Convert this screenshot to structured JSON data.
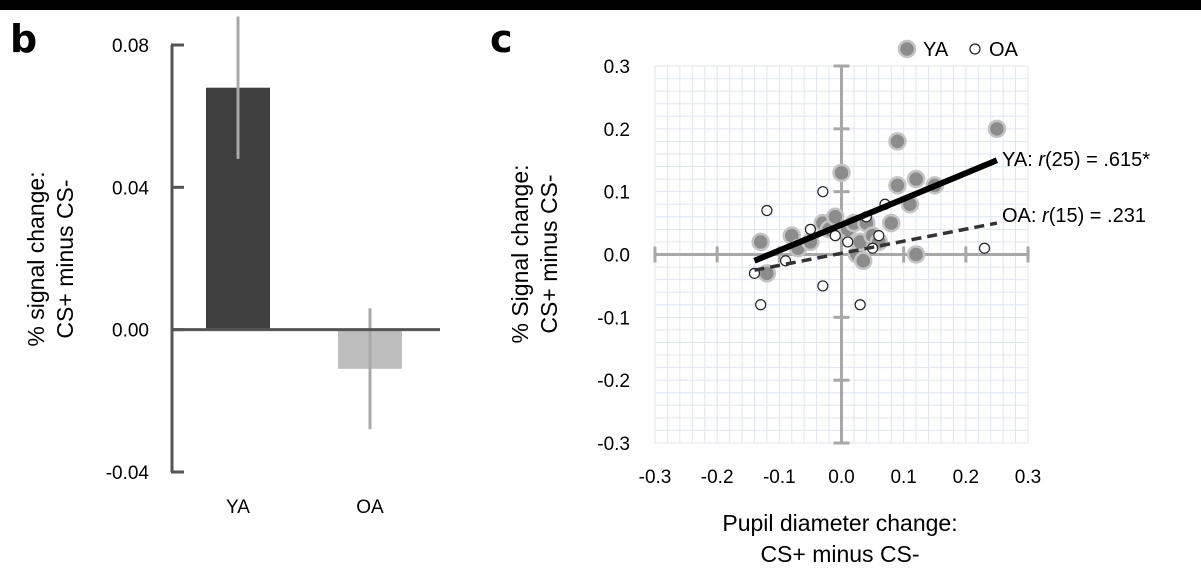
{
  "chart_data": [
    {
      "panel": "b",
      "type": "bar",
      "categories": [
        "YA",
        "OA"
      ],
      "values": [
        0.068,
        -0.011
      ],
      "errors": [
        0.02,
        0.017
      ],
      "colors": [
        "#3f3f3f",
        "#bdbdbd"
      ],
      "error_color": "#a9a9a9",
      "ylabel_lines": [
        "% signal change:",
        "CS+ minus CS-"
      ],
      "ylim": [
        -0.04,
        0.08
      ],
      "yticks": [
        0.08,
        0.04,
        0.0,
        -0.04
      ],
      "ytick_labels": [
        "0.08",
        "0.04",
        "0.00",
        "-0.04"
      ]
    },
    {
      "panel": "c",
      "type": "scatter",
      "xlabel_lines": [
        "Pupil diameter change:",
        "CS+ minus CS-"
      ],
      "ylabel_lines": [
        "% Signal change:",
        "CS+ minus CS-"
      ],
      "xlim": [
        -0.3,
        0.3
      ],
      "ylim": [
        -0.3,
        0.3
      ],
      "xticks": [
        -0.3,
        -0.2,
        -0.1,
        0.0,
        0.1,
        0.2,
        0.3
      ],
      "xtick_labels": [
        "-0.3",
        "-0.2",
        "-0.1",
        "0.0",
        "0.1",
        "0.2",
        "0.3"
      ],
      "yticks": [
        0.3,
        0.2,
        0.1,
        0.0,
        -0.1,
        -0.2,
        -0.3
      ],
      "ytick_labels": [
        "0.3",
        "0.2",
        "0.1",
        "0.0",
        "-0.1",
        "-0.2",
        "-0.3"
      ],
      "grid": true,
      "legend_position": "top-right",
      "series": [
        {
          "name": "YA",
          "marker": "filled",
          "color": "#8c8c8c",
          "points": [
            [
              -0.13,
              0.02
            ],
            [
              -0.12,
              -0.03
            ],
            [
              -0.08,
              0.03
            ],
            [
              -0.07,
              0.01
            ],
            [
              -0.05,
              0.02
            ],
            [
              -0.03,
              0.05
            ],
            [
              -0.02,
              0.04
            ],
            [
              -0.01,
              0.06
            ],
            [
              0.0,
              0.13
            ],
            [
              0.01,
              0.04
            ],
            [
              0.02,
              0.05
            ],
            [
              0.025,
              0.0
            ],
            [
              0.03,
              0.02
            ],
            [
              0.035,
              -0.01
            ],
            [
              0.04,
              0.05
            ],
            [
              0.05,
              0.03
            ],
            [
              0.06,
              0.02
            ],
            [
              0.08,
              0.05
            ],
            [
              0.09,
              0.11
            ],
            [
              0.09,
              0.18
            ],
            [
              0.11,
              0.08
            ],
            [
              0.12,
              0.12
            ],
            [
              0.12,
              0.0
            ],
            [
              0.15,
              0.11
            ],
            [
              0.25,
              0.2
            ]
          ]
        },
        {
          "name": "OA",
          "marker": "open",
          "color": "#ffffff",
          "points": [
            [
              -0.14,
              -0.03
            ],
            [
              -0.13,
              -0.08
            ],
            [
              -0.12,
              0.07
            ],
            [
              -0.09,
              -0.01
            ],
            [
              -0.05,
              0.04
            ],
            [
              -0.03,
              0.1
            ],
            [
              -0.03,
              -0.05
            ],
            [
              -0.01,
              0.03
            ],
            [
              0.01,
              0.02
            ],
            [
              0.03,
              -0.08
            ],
            [
              0.04,
              0.06
            ],
            [
              0.05,
              0.01
            ],
            [
              0.06,
              0.03
            ],
            [
              0.07,
              0.08
            ],
            [
              0.23,
              0.01
            ]
          ]
        }
      ],
      "fits": [
        {
          "series": "YA",
          "x": [
            -0.14,
            0.25
          ],
          "y": [
            -0.01,
            0.15
          ],
          "style": "solid",
          "label_prefix": "YA: ",
          "label_r": "r",
          "label_rest": "(25) = .615*"
        },
        {
          "series": "OA",
          "x": [
            -0.14,
            0.25
          ],
          "y": [
            -0.025,
            0.05
          ],
          "style": "dashed",
          "label_prefix": "OA: ",
          "label_r": "r",
          "label_rest": "(15) = .231"
        }
      ]
    }
  ]
}
